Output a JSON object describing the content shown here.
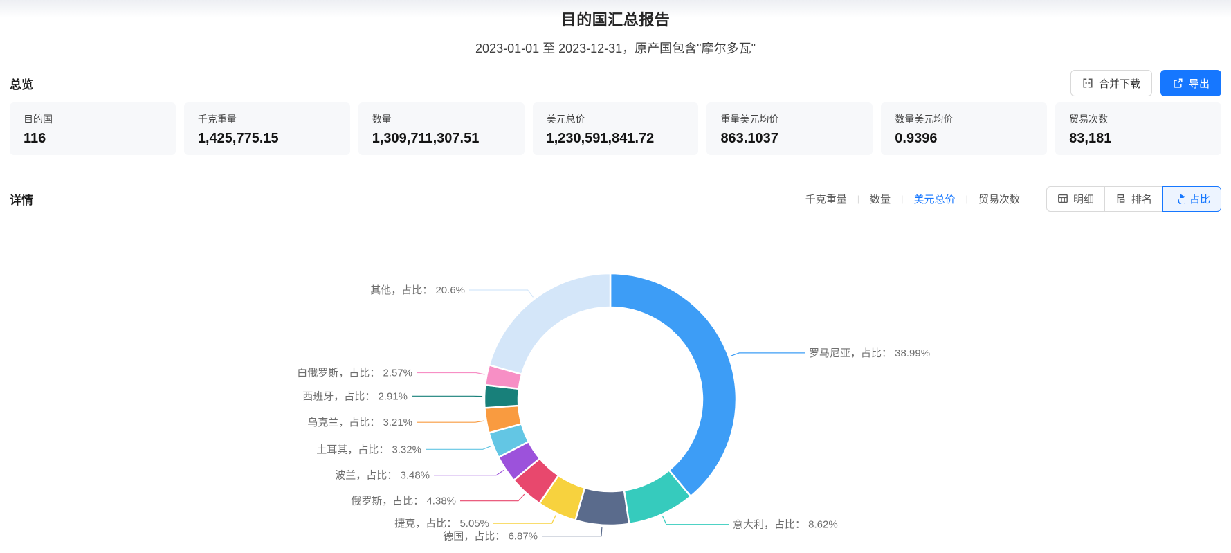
{
  "header": {
    "title": "目的国汇总报告",
    "subtitle": "2023-01-01 至 2023-12-31，原产国包含\"摩尔多瓦\""
  },
  "overview": {
    "section_title": "总览",
    "merge_download_label": "合并下载",
    "export_label": "导出",
    "cards": [
      {
        "label": "目的国",
        "value": "116"
      },
      {
        "label": "千克重量",
        "value": "1,425,775.15"
      },
      {
        "label": "数量",
        "value": "1,309,711,307.51"
      },
      {
        "label": "美元总价",
        "value": "1,230,591,841.72"
      },
      {
        "label": "重量美元均价",
        "value": "863.1037"
      },
      {
        "label": "数量美元均价",
        "value": "0.9396"
      },
      {
        "label": "贸易次数",
        "value": "83,181"
      }
    ]
  },
  "detail": {
    "section_title": "详情",
    "metric_tabs": [
      {
        "label": "千克重量",
        "active": false
      },
      {
        "label": "数量",
        "active": false
      },
      {
        "label": "美元总价",
        "active": true
      },
      {
        "label": "贸易次数",
        "active": false
      }
    ],
    "view_buttons": [
      {
        "label": "明细",
        "icon": "table-icon",
        "active": false
      },
      {
        "label": "排名",
        "icon": "ranking-icon",
        "active": false
      },
      {
        "label": "占比",
        "icon": "pie-chart-icon",
        "active": true
      }
    ]
  },
  "colors": {
    "accent": "#1677ff",
    "card_background": "#f7f8fa",
    "label_text": "#6e6e6e"
  },
  "chart_data": {
    "type": "pie",
    "donut": true,
    "clockwise": true,
    "start_angle": "top",
    "legend": "none",
    "label_format": "{name}，占比： {value}%",
    "series": [
      {
        "name": "罗马尼亚",
        "value": 38.99,
        "color": "#3d9df6"
      },
      {
        "name": "意大利",
        "value": 8.62,
        "color": "#36cbbd"
      },
      {
        "name": "德国",
        "value": 6.87,
        "color": "#5a6b8c"
      },
      {
        "name": "捷克",
        "value": 5.05,
        "color": "#f7d23e"
      },
      {
        "name": "俄罗斯",
        "value": 4.38,
        "color": "#e8486d"
      },
      {
        "name": "波兰",
        "value": 3.48,
        "color": "#9c52db"
      },
      {
        "name": "土耳其",
        "value": 3.32,
        "color": "#63c6e4"
      },
      {
        "name": "乌克兰",
        "value": 3.21,
        "color": "#f99b40"
      },
      {
        "name": "西班牙",
        "value": 2.91,
        "color": "#18807a"
      },
      {
        "name": "白俄罗斯",
        "value": 2.57,
        "color": "#f78fc5"
      },
      {
        "name": "其他",
        "value": 20.6,
        "color": "#d4e6f9"
      }
    ]
  }
}
